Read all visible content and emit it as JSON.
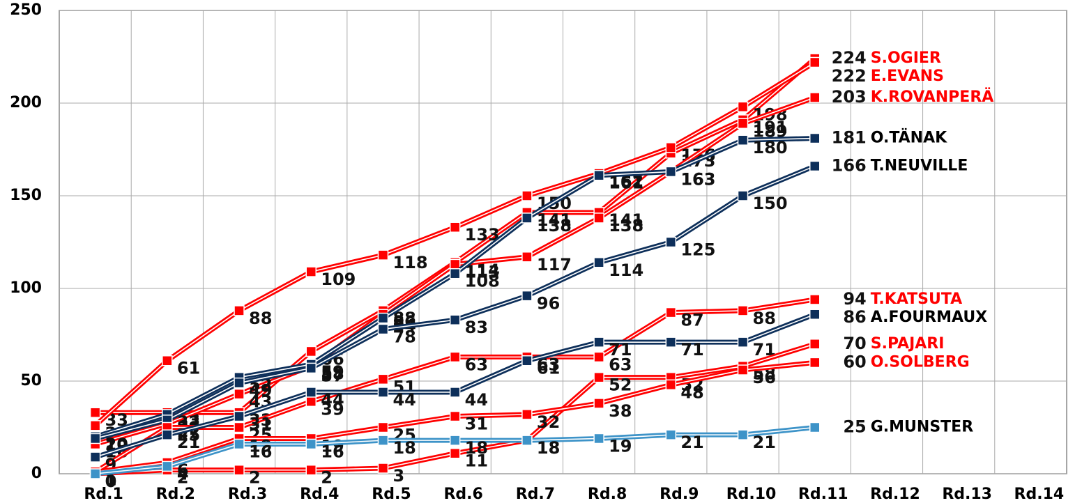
{
  "chart_data": {
    "type": "line",
    "categories": [
      "Rd.1",
      "Rd.2",
      "Rd.3",
      "Rd.4",
      "Rd.5",
      "Rd.6",
      "Rd.7",
      "Rd.8",
      "Rd.9",
      "Rd.10",
      "Rd.11",
      "Rd.12",
      "Rd.13",
      "Rd.14"
    ],
    "ylim": [
      0,
      250
    ],
    "yticks": [
      0,
      50,
      100,
      150,
      200,
      250
    ],
    "grid": true,
    "series": [
      {
        "name": "S.OGIER",
        "color": "#ff0000",
        "label_color": "#ff0000",
        "values": [
          33,
          33,
          33,
          66,
          88,
          114,
          141,
          141,
          173,
          191,
          224,
          null,
          null,
          null
        ]
      },
      {
        "name": "E.EVANS",
        "color": "#ff0000",
        "label_color": "#ff0000",
        "values": [
          26,
          61,
          88,
          109,
          118,
          133,
          150,
          162,
          176,
          198,
          222,
          null,
          null,
          null
        ]
      },
      {
        "name": "K.ROVANPERÄ",
        "color": "#ff0000",
        "label_color": "#ff0000",
        "values": [
          16,
          27,
          43,
          58,
          86,
          113,
          117,
          138,
          163,
          189,
          203,
          null,
          null,
          null
        ]
      },
      {
        "name": "O.TÄNAK",
        "color": "#0d2f5a",
        "label_color": "#000000",
        "values": [
          20,
          32,
          52,
          59,
          84,
          108,
          138,
          161,
          163,
          180,
          181,
          null,
          null,
          null
        ]
      },
      {
        "name": "T.NEUVILLE",
        "color": "#0d2f5a",
        "label_color": "#000000",
        "values": [
          19,
          29,
          49,
          57,
          78,
          83,
          96,
          114,
          125,
          150,
          166,
          null,
          null,
          null
        ]
      },
      {
        "name": "T.KATSUTA",
        "color": "#ff0000",
        "label_color": "#ff0000",
        "values": [
          1,
          25,
          25,
          39,
          51,
          63,
          63,
          63,
          87,
          88,
          94,
          null,
          null,
          null
        ]
      },
      {
        "name": "A.FOURMAUX",
        "color": "#0d2f5a",
        "label_color": "#000000",
        "values": [
          9,
          21,
          31,
          44,
          44,
          44,
          61,
          71,
          71,
          71,
          86,
          null,
          null,
          null
        ]
      },
      {
        "name": "S.PAJARI",
        "color": "#ff0000",
        "label_color": "#ff0000",
        "values": [
          0,
          2,
          2,
          2,
          3,
          11,
          18,
          52,
          52,
          58,
          70,
          null,
          null,
          null
        ]
      },
      {
        "name": "O.SOLBERG",
        "color": "#ff0000",
        "label_color": "#ff0000",
        "values": [
          1,
          6,
          19,
          19,
          25,
          31,
          32,
          38,
          48,
          56,
          60,
          null,
          null,
          null
        ]
      },
      {
        "name": "G.MUNSTER",
        "color": "#3d93c8",
        "label_color": "#000000",
        "values": [
          0,
          4,
          16,
          16,
          18,
          18,
          18,
          19,
          21,
          21,
          25,
          null,
          null,
          null
        ]
      }
    ]
  }
}
